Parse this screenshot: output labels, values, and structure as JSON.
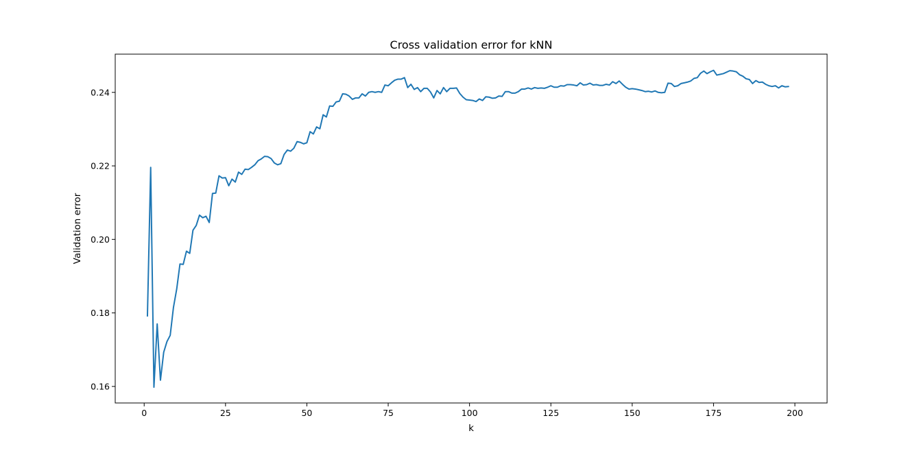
{
  "chart_data": {
    "type": "line",
    "title": "Cross validation error for kNN",
    "xlabel": "k",
    "ylabel": "Validation error",
    "xlim": [
      -8.9,
      209.9
    ],
    "ylim": [
      0.1555,
      0.2504
    ],
    "xticks": [
      0,
      25,
      50,
      75,
      100,
      125,
      150,
      175,
      200
    ],
    "yticks": [
      0.16,
      0.18,
      0.2,
      0.22,
      0.24
    ],
    "ytick_labels": [
      "0.16",
      "0.18",
      "0.20",
      "0.22",
      "0.24"
    ],
    "grid": false,
    "legend": "none",
    "series": [
      {
        "color": "#1f77b4",
        "x_start": 1,
        "x_step": 1,
        "values": [
          0.1792,
          0.2196,
          0.1598,
          0.177,
          0.1617,
          0.1693,
          0.1722,
          0.1739,
          0.1815,
          0.1865,
          0.1933,
          0.1932,
          0.1968,
          0.1962,
          0.2025,
          0.2038,
          0.2066,
          0.2059,
          0.2063,
          0.2046,
          0.2125,
          0.2126,
          0.2173,
          0.2167,
          0.2168,
          0.2146,
          0.2164,
          0.2156,
          0.2183,
          0.2177,
          0.2191,
          0.219,
          0.2196,
          0.2203,
          0.2214,
          0.2219,
          0.2226,
          0.2225,
          0.222,
          0.2208,
          0.2203,
          0.2206,
          0.2231,
          0.2243,
          0.224,
          0.2248,
          0.2266,
          0.2264,
          0.226,
          0.2263,
          0.2293,
          0.2287,
          0.2306,
          0.2301,
          0.2339,
          0.2333,
          0.2363,
          0.2362,
          0.2374,
          0.2376,
          0.2396,
          0.2395,
          0.239,
          0.2381,
          0.2385,
          0.2385,
          0.2396,
          0.239,
          0.24,
          0.2402,
          0.24,
          0.2402,
          0.24,
          0.242,
          0.2418,
          0.2426,
          0.2433,
          0.2436,
          0.2436,
          0.244,
          0.2413,
          0.2422,
          0.2408,
          0.2413,
          0.2402,
          0.2411,
          0.2411,
          0.2401,
          0.2385,
          0.2405,
          0.2396,
          0.2413,
          0.2402,
          0.2411,
          0.2411,
          0.2412,
          0.2397,
          0.2387,
          0.238,
          0.2379,
          0.2378,
          0.2375,
          0.2382,
          0.2378,
          0.2388,
          0.2387,
          0.2384,
          0.2385,
          0.239,
          0.2389,
          0.2402,
          0.2402,
          0.2398,
          0.2398,
          0.2402,
          0.2409,
          0.2409,
          0.2412,
          0.2409,
          0.2413,
          0.2411,
          0.2412,
          0.2411,
          0.2414,
          0.2418,
          0.2414,
          0.2414,
          0.2418,
          0.2417,
          0.2421,
          0.2421,
          0.242,
          0.2418,
          0.2426,
          0.242,
          0.2421,
          0.2425,
          0.242,
          0.2421,
          0.2419,
          0.2419,
          0.2422,
          0.242,
          0.2429,
          0.2424,
          0.2431,
          0.2422,
          0.2414,
          0.2409,
          0.241,
          0.2409,
          0.2407,
          0.2405,
          0.2402,
          0.2403,
          0.2401,
          0.2404,
          0.24,
          0.2399,
          0.24,
          0.2425,
          0.2424,
          0.2416,
          0.2418,
          0.2424,
          0.2426,
          0.2428,
          0.2431,
          0.2438,
          0.244,
          0.2452,
          0.2458,
          0.2451,
          0.2456,
          0.246,
          0.2447,
          0.2449,
          0.2451,
          0.2455,
          0.2459,
          0.2458,
          0.2456,
          0.2448,
          0.2444,
          0.2437,
          0.2435,
          0.2424,
          0.2432,
          0.2427,
          0.2428,
          0.2422,
          0.2418,
          0.2416,
          0.2418,
          0.2412,
          0.2418,
          0.2415,
          0.2416
        ]
      }
    ]
  }
}
